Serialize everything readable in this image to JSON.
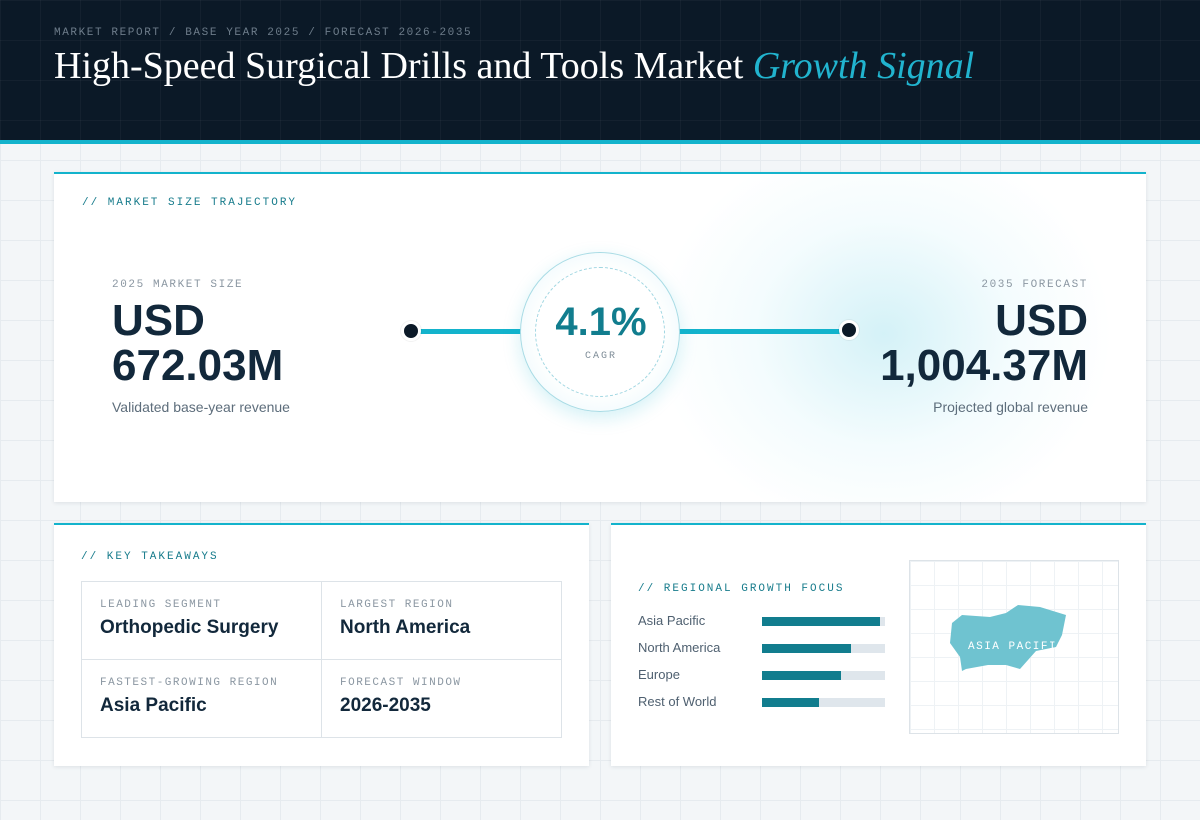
{
  "header": {
    "breadcrumb": "MARKET REPORT / BASE YEAR 2025 / FORECAST 2026-2035",
    "title_main": "High-Speed Surgical Drills and Tools Market",
    "title_accent": "Growth Signal"
  },
  "trajectory": {
    "section_label": "// MARKET SIZE TRAJECTORY",
    "start": {
      "label": "2025 MARKET SIZE",
      "value_line1": "USD",
      "value_line2": "672.03M",
      "sub": "Validated base-year revenue"
    },
    "cagr": {
      "value": "4.1%",
      "label": "CAGR"
    },
    "end": {
      "label": "2035 FORECAST",
      "value_line1": "USD",
      "value_line2": "1,004.37M",
      "sub": "Projected global revenue"
    }
  },
  "takeaways": {
    "section_label": "// KEY TAKEAWAYS",
    "items": [
      {
        "label": "LEADING SEGMENT",
        "value": "Orthopedic Surgery"
      },
      {
        "label": "LARGEST REGION",
        "value": "North America"
      },
      {
        "label": "FASTEST-GROWING REGION",
        "value": "Asia Pacific"
      },
      {
        "label": "FORECAST WINDOW",
        "value": "2026-2035"
      }
    ]
  },
  "regional": {
    "section_label": "// REGIONAL GROWTH FOCUS",
    "rows": [
      {
        "name": "Asia Pacific",
        "level": 0.96
      },
      {
        "name": "North America",
        "level": 0.72
      },
      {
        "name": "Europe",
        "level": 0.64
      },
      {
        "name": "Rest of World",
        "level": 0.46
      }
    ],
    "map_label": "ASIA PACIFIC",
    "map_color": "#6fc3d0"
  },
  "colors": {
    "accent": "#13b3cc",
    "dark": "#0b1927",
    "bar": "#117d8e"
  }
}
